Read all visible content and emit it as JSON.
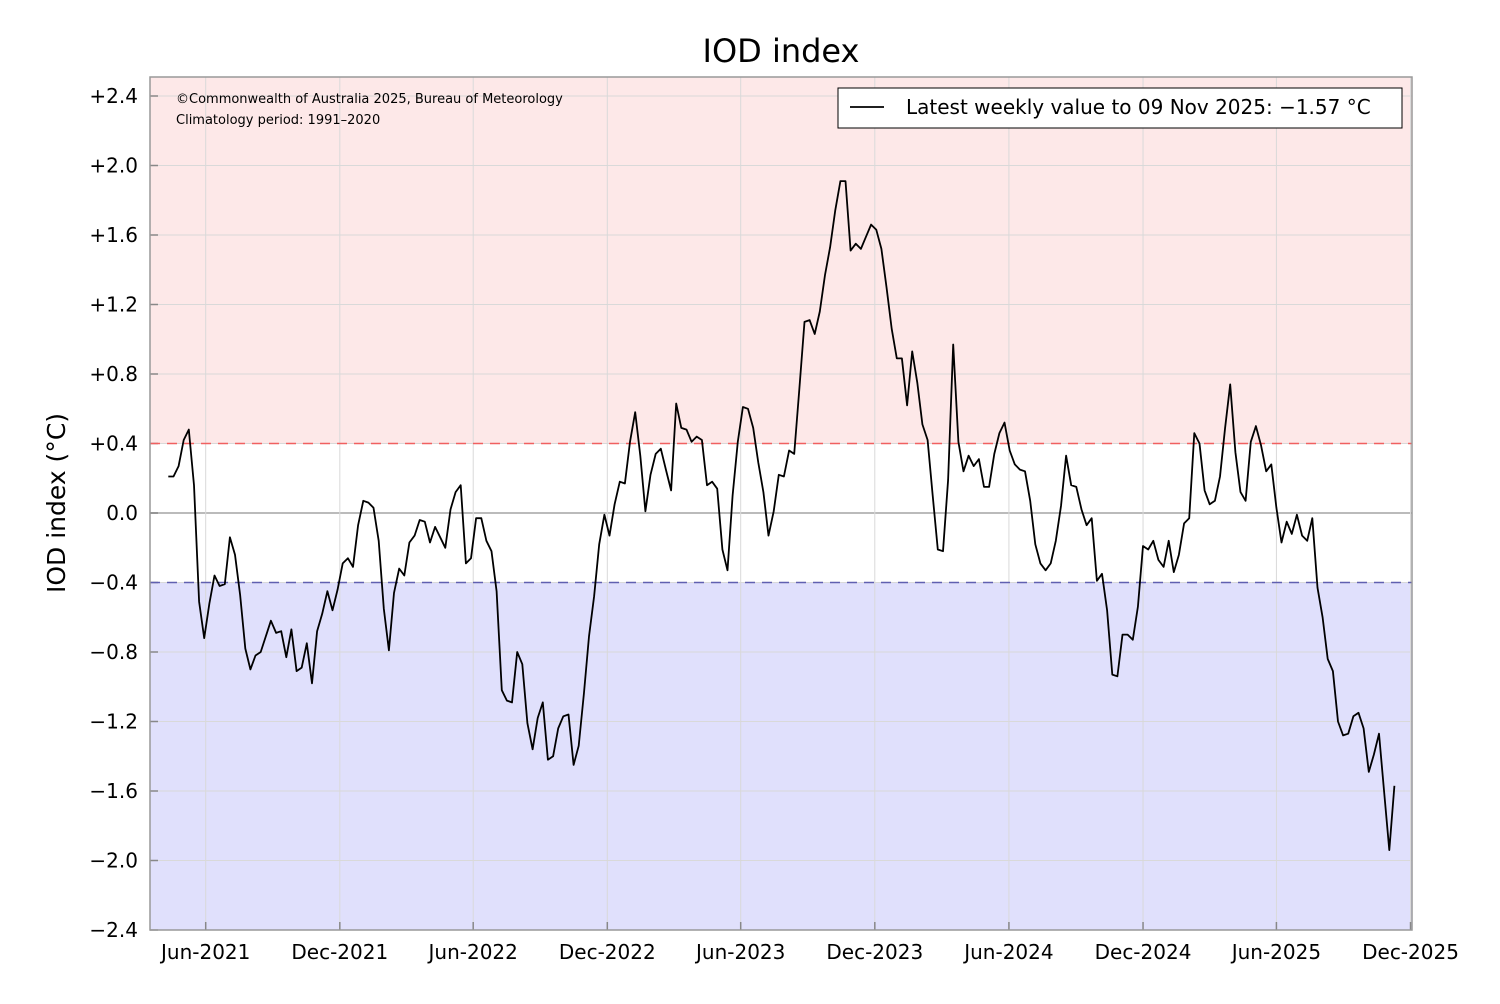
{
  "chart_data": {
    "type": "line",
    "title": "IOD index",
    "ylabel": "IOD index (°C)",
    "xlabel": "",
    "ylim": [
      -2.4,
      2.4
    ],
    "xlim": [
      "2021-03-17",
      "2025-12-03"
    ],
    "yticks": [
      2.4,
      2.0,
      1.6,
      1.2,
      0.8,
      0.4,
      0.0,
      -0.4,
      -0.8,
      -1.2,
      -1.6,
      -2.0,
      -2.4
    ],
    "ytick_labels": [
      "+2.4",
      "+2.0",
      "+1.6",
      "+1.2",
      "+0.8",
      "+0.4",
      "0.0",
      "−0.4",
      "−0.8",
      "−1.2",
      "−1.6",
      "−2.0",
      "−2.4"
    ],
    "xticks": [
      "2021-06-01",
      "2021-12-01",
      "2022-06-01",
      "2022-12-01",
      "2023-06-01",
      "2023-12-01",
      "2024-06-01",
      "2024-12-01",
      "2025-06-01",
      "2025-12-01"
    ],
    "xtick_labels": [
      "Jun-2021",
      "Dec-2021",
      "Jun-2022",
      "Dec-2022",
      "Jun-2023",
      "Dec-2023",
      "Jun-2024",
      "Dec-2024",
      "Jun-2025",
      "Dec-2025"
    ],
    "grid": true,
    "thresholds": {
      "positive": 0.4,
      "negative": -0.4
    },
    "colors": {
      "positive_band": "#fde8e8",
      "negative_band": "#e0e0fc",
      "positive_line": "#f06060",
      "negative_line": "#6060b0",
      "series": "#000000",
      "grid": "#d9d9d9"
    },
    "annotations": [
      "©Commonwealth of Australia 2025, Bureau of Meteorology",
      "Climatology period: 1991–2020"
    ],
    "legend": {
      "position": "top-right",
      "label": "Latest weekly value to 09 Nov 2025: −1.57 °C"
    },
    "series": [
      {
        "frequency": "weekly",
        "last_date": "2025-11-09",
        "values": [
          0.21,
          0.21,
          0.27,
          0.42,
          0.48,
          0.16,
          -0.51,
          -0.72,
          -0.52,
          -0.36,
          -0.42,
          -0.41,
          -0.14,
          -0.24,
          -0.47,
          -0.78,
          -0.9,
          -0.82,
          -0.8,
          -0.71,
          -0.62,
          -0.69,
          -0.68,
          -0.83,
          -0.67,
          -0.91,
          -0.89,
          -0.75,
          -0.98,
          -0.68,
          -0.58,
          -0.45,
          -0.56,
          -0.44,
          -0.29,
          -0.26,
          -0.31,
          -0.07,
          0.07,
          0.06,
          0.03,
          -0.16,
          -0.55,
          -0.79,
          -0.46,
          -0.32,
          -0.36,
          -0.17,
          -0.13,
          -0.04,
          -0.05,
          -0.17,
          -0.08,
          -0.14,
          -0.2,
          0.02,
          0.12,
          0.16,
          -0.29,
          -0.26,
          -0.03,
          -0.03,
          -0.16,
          -0.22,
          -0.45,
          -1.02,
          -1.08,
          -1.09,
          -0.8,
          -0.87,
          -1.21,
          -1.36,
          -1.18,
          -1.09,
          -1.42,
          -1.4,
          -1.24,
          -1.17,
          -1.16,
          -1.45,
          -1.34,
          -1.04,
          -0.71,
          -0.48,
          -0.18,
          -0.01,
          -0.13,
          0.05,
          0.18,
          0.17,
          0.41,
          0.58,
          0.33,
          0.01,
          0.22,
          0.34,
          0.37,
          0.25,
          0.13,
          0.63,
          0.49,
          0.48,
          0.41,
          0.44,
          0.42,
          0.16,
          0.18,
          0.14,
          -0.21,
          -0.33,
          0.1,
          0.41,
          0.61,
          0.6,
          0.49,
          0.29,
          0.12,
          -0.13,
          0.01,
          0.22,
          0.21,
          0.36,
          0.34,
          0.71,
          1.1,
          1.11,
          1.03,
          1.16,
          1.37,
          1.53,
          1.74,
          1.91,
          1.91,
          1.51,
          1.55,
          1.52,
          1.59,
          1.66,
          1.63,
          1.52,
          1.3,
          1.06,
          0.89,
          0.89,
          0.62,
          0.93,
          0.75,
          0.51,
          0.42,
          0.1,
          -0.21,
          -0.22,
          0.19,
          0.97,
          0.41,
          0.24,
          0.33,
          0.27,
          0.31,
          0.15,
          0.15,
          0.34,
          0.46,
          0.52,
          0.36,
          0.28,
          0.25,
          0.24,
          0.07,
          -0.18,
          -0.29,
          -0.33,
          -0.29,
          -0.16,
          0.04,
          0.33,
          0.16,
          0.15,
          0.02,
          -0.07,
          -0.03,
          -0.39,
          -0.35,
          -0.56,
          -0.93,
          -0.94,
          -0.7,
          -0.7,
          -0.73,
          -0.54,
          -0.19,
          -0.21,
          -0.16,
          -0.27,
          -0.31,
          -0.16,
          -0.34,
          -0.24,
          -0.06,
          -0.03,
          0.46,
          0.4,
          0.13,
          0.05,
          0.07,
          0.21,
          0.49,
          0.74,
          0.35,
          0.12,
          0.07,
          0.41,
          0.5,
          0.39,
          0.24,
          0.28,
          0.03,
          -0.17,
          -0.05,
          -0.12,
          -0.01,
          -0.13,
          -0.16,
          -0.03,
          -0.43,
          -0.6,
          -0.84,
          -0.91,
          -1.2,
          -1.28,
          -1.27,
          -1.17,
          -1.15,
          -1.24,
          -1.49,
          -1.39,
          -1.27,
          -1.61,
          -1.94,
          -1.57
        ]
      }
    ]
  }
}
